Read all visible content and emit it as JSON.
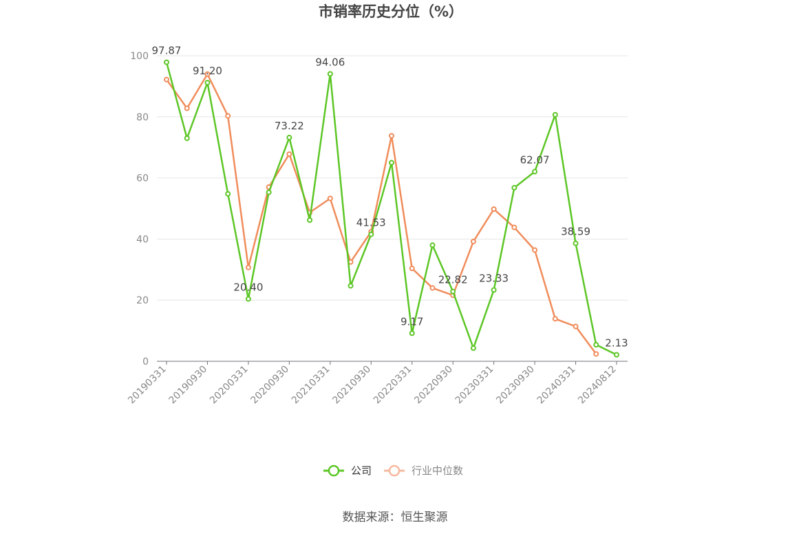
{
  "chart_data": {
    "type": "line",
    "title": "市销率历史分位（%）",
    "source": "数据来源：恒生聚源",
    "ylim": [
      0,
      100
    ],
    "yticks": [
      "0",
      "20",
      "40",
      "60",
      "80",
      "100"
    ],
    "x": [
      "20190331",
      "20190630",
      "20190930",
      "20191231",
      "20200331",
      "20200630",
      "20200930",
      "20201231",
      "20210331",
      "20210630",
      "20210930",
      "20211231",
      "20220331",
      "20220630",
      "20220930",
      "20221231",
      "20230331",
      "20230630",
      "20230930",
      "20231231",
      "20240331",
      "20240630",
      "20240812"
    ],
    "xtick_labels": [
      "20190331",
      "20190930",
      "20200331",
      "20200930",
      "20210331",
      "20210930",
      "20220331",
      "20220930",
      "20230331",
      "20230930",
      "20240331",
      "20240812"
    ],
    "grid": true,
    "legend_position": "bottom-center",
    "series": [
      {
        "name": "公司",
        "color": "#5cc625",
        "values": [
          97.87,
          73.0,
          91.2,
          54.8,
          20.4,
          55.3,
          73.22,
          46.2,
          94.06,
          24.7,
          41.53,
          65.0,
          9.17,
          38.0,
          22.82,
          4.3,
          23.33,
          56.8,
          62.07,
          80.7,
          38.59,
          5.4,
          2.13
        ],
        "labels": [
          "97.87",
          "",
          "91.20",
          "",
          "20.40",
          "",
          "73.22",
          "",
          "94.06",
          "",
          "41.53",
          "",
          "9.17",
          "",
          "22.82",
          "",
          "23.33",
          "",
          "62.07",
          "",
          "38.59",
          "",
          "2.13"
        ]
      },
      {
        "name": "行业中位数",
        "color": "#f08c5a",
        "values": [
          92.2,
          82.8,
          94.0,
          80.3,
          30.7,
          57.0,
          67.8,
          48.7,
          53.3,
          32.5,
          42.4,
          73.8,
          30.4,
          24.0,
          21.6,
          39.2,
          49.8,
          43.8,
          36.4,
          13.9,
          11.4,
          2.4,
          null
        ]
      }
    ]
  }
}
